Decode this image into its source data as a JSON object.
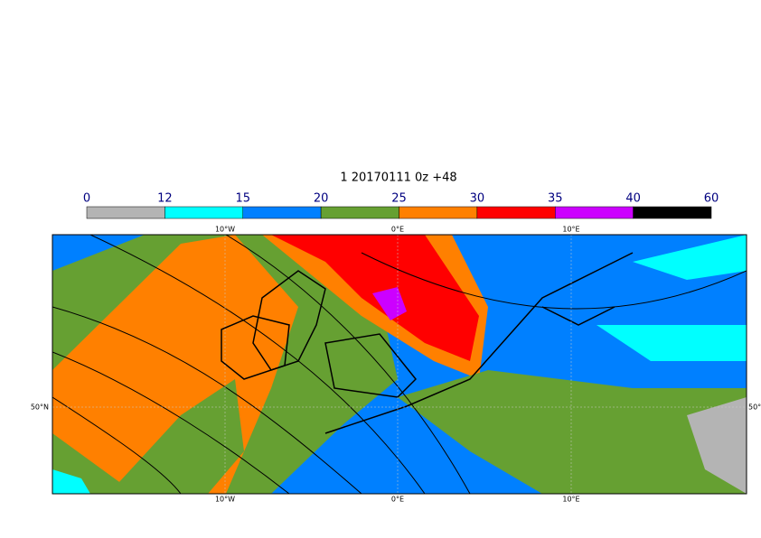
{
  "title": "1 20170111 0z +48",
  "colorbar": {
    "levels": [
      0,
      12,
      15,
      20,
      25,
      30,
      35,
      40,
      60
    ],
    "colors": [
      "#b4b4b4",
      "#00ffff",
      "#0080ff",
      "#66a032",
      "#ff8000",
      "#ff0000",
      "#cc00ff",
      "#000000"
    ]
  },
  "lon_labels": [
    "10°W",
    "0°E",
    "10°E"
  ],
  "lat_labels": [
    "50°N"
  ]
}
